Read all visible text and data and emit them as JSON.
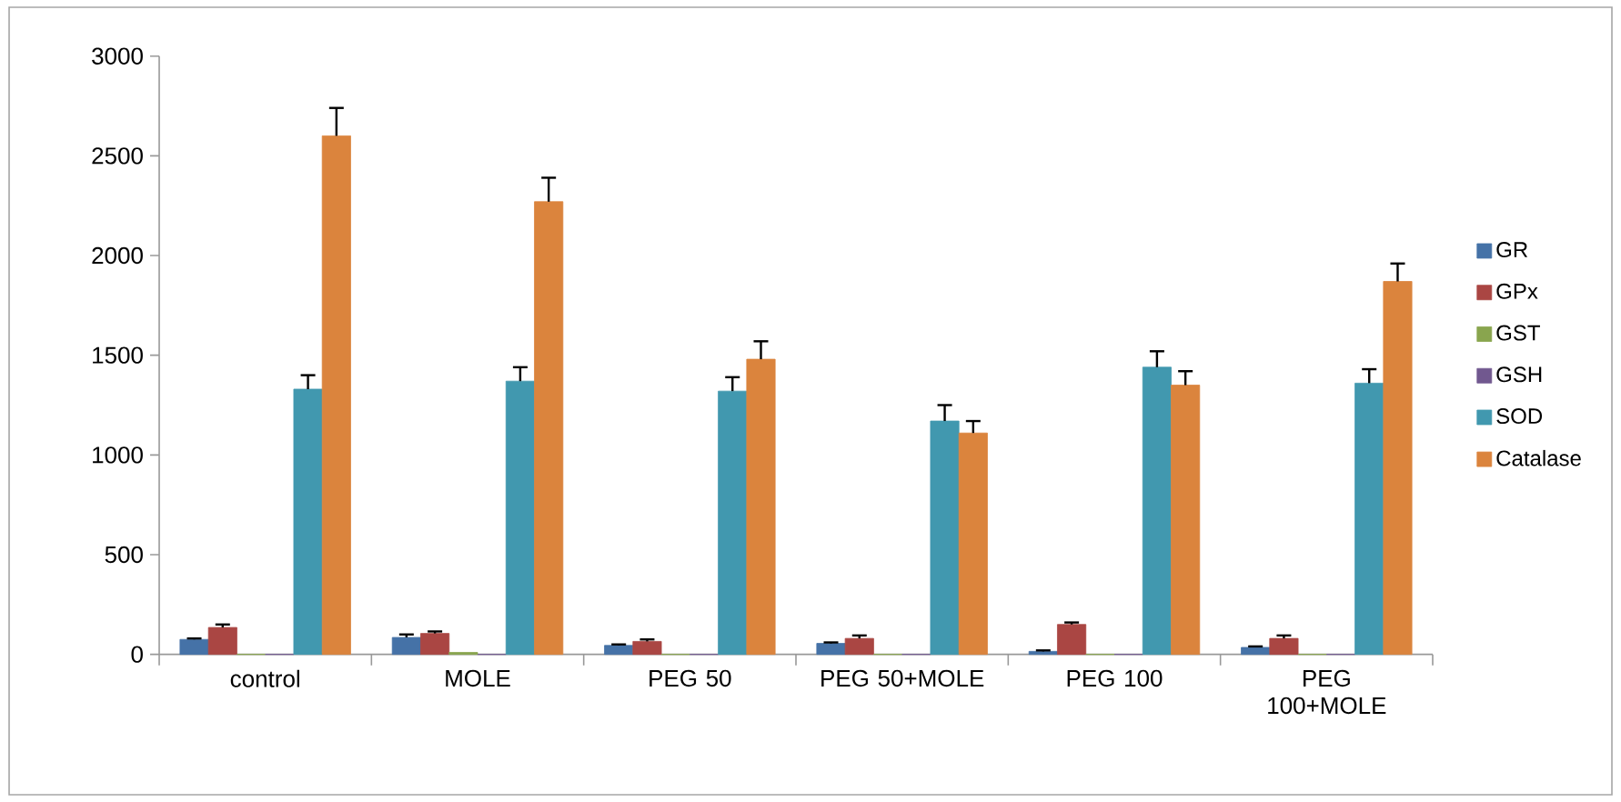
{
  "chart_data": {
    "type": "bar",
    "categories": [
      "control",
      "MOLE",
      "PEG 50",
      "PEG 50+MOLE",
      "PEG 100",
      "PEG 100+MOLE"
    ],
    "series": [
      {
        "name": "GR",
        "color": "#4572a7",
        "values": [
          75,
          85,
          45,
          55,
          15,
          35
        ],
        "errors": [
          [
            75,
            80
          ],
          [
            85,
            100
          ],
          [
            45,
            50
          ],
          [
            55,
            60
          ],
          [
            15,
            20
          ],
          [
            35,
            40
          ]
        ]
      },
      {
        "name": "GPx",
        "color": "#aa4643",
        "values": [
          135,
          105,
          65,
          80,
          150,
          80
        ],
        "errors": [
          [
            135,
            150
          ],
          [
            105,
            115
          ],
          [
            65,
            75
          ],
          [
            80,
            95
          ],
          [
            150,
            160
          ],
          [
            80,
            95
          ]
        ]
      },
      {
        "name": "GST",
        "color": "#89a54e",
        "values": [
          0,
          10,
          0,
          0,
          0,
          0
        ]
      },
      {
        "name": "GSH",
        "color": "#71588f",
        "values": [
          0,
          0,
          0,
          0,
          0,
          0
        ]
      },
      {
        "name": "SOD",
        "color": "#4198af",
        "values": [
          1330,
          1370,
          1320,
          1170,
          1440,
          1360
        ],
        "errors": [
          [
            1330,
            1400
          ],
          [
            1370,
            1440
          ],
          [
            1320,
            1390
          ],
          [
            1170,
            1250
          ],
          [
            1440,
            1520
          ],
          [
            1360,
            1430
          ]
        ]
      },
      {
        "name": "Catalase",
        "color": "#db843d",
        "values": [
          2600,
          2270,
          1480,
          1110,
          1350,
          1870
        ],
        "errors": [
          [
            2600,
            2740
          ],
          [
            2270,
            2390
          ],
          [
            1480,
            1570
          ],
          [
            1110,
            1170
          ],
          [
            1350,
            1420
          ],
          [
            1870,
            1960
          ]
        ]
      }
    ],
    "ylim": [
      0,
      3000
    ],
    "yticks": [
      0,
      500,
      1000,
      1500,
      2000,
      2500,
      3000
    ],
    "grid": false,
    "legend": "right"
  }
}
